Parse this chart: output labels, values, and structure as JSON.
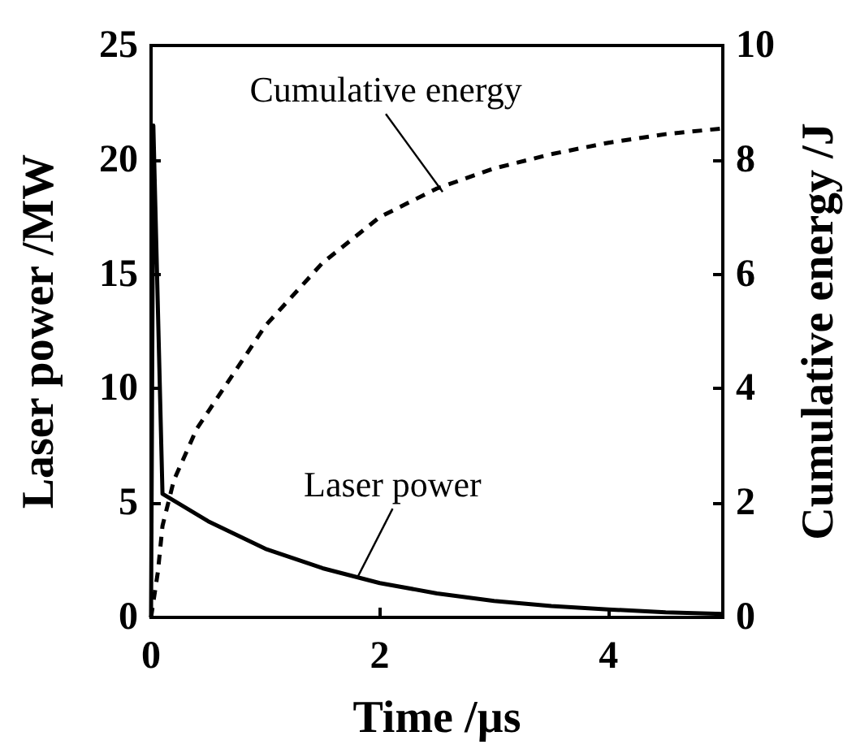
{
  "chart_data": {
    "type": "line",
    "xlabel": "Time /µs",
    "ylabel": "Laser power /MW",
    "y2label": "Cumulative energy /J",
    "xlim": [
      0,
      5
    ],
    "xticks": [
      0,
      2,
      4
    ],
    "ylim": [
      0,
      25
    ],
    "yticks": [
      0,
      5,
      10,
      15,
      20,
      25
    ],
    "y2lim": [
      0,
      10
    ],
    "y2ticks": [
      0,
      2,
      4,
      6,
      8,
      10
    ],
    "grid": false,
    "marker": "none",
    "series": [
      {
        "color": "#000000",
        "line_style": "solid",
        "x": [
          0,
          0.02,
          0.03,
          0.1,
          0.5,
          1.0,
          1.5,
          2.0,
          2.5,
          3.0,
          3.5,
          4.0,
          4.5,
          5.0
        ],
        "values": [
          0,
          21.5,
          21.5,
          5.4,
          4.2,
          3.0,
          2.15,
          1.5,
          1.05,
          0.72,
          0.5,
          0.35,
          0.22,
          0.15
        ]
      },
      {
        "color": "#000000",
        "line_style": "dashed",
        "axis": "y2",
        "x": [
          0,
          0.03,
          0.06,
          0.1,
          0.2,
          0.4,
          0.7,
          1.0,
          1.5,
          2.0,
          2.5,
          3.0,
          3.5,
          4.0,
          4.5,
          5.0
        ],
        "values": [
          0,
          0.4,
          0.8,
          1.6,
          2.4,
          3.3,
          4.2,
          5.1,
          6.2,
          7.0,
          7.5,
          7.85,
          8.1,
          8.3,
          8.45,
          8.55
        ]
      }
    ],
    "annotations": [
      {
        "text": "Cumulative energy",
        "x": 2.55,
        "y": 18.6
      },
      {
        "text": "Laser power",
        "x": 1.8,
        "y": 1.7
      }
    ]
  }
}
